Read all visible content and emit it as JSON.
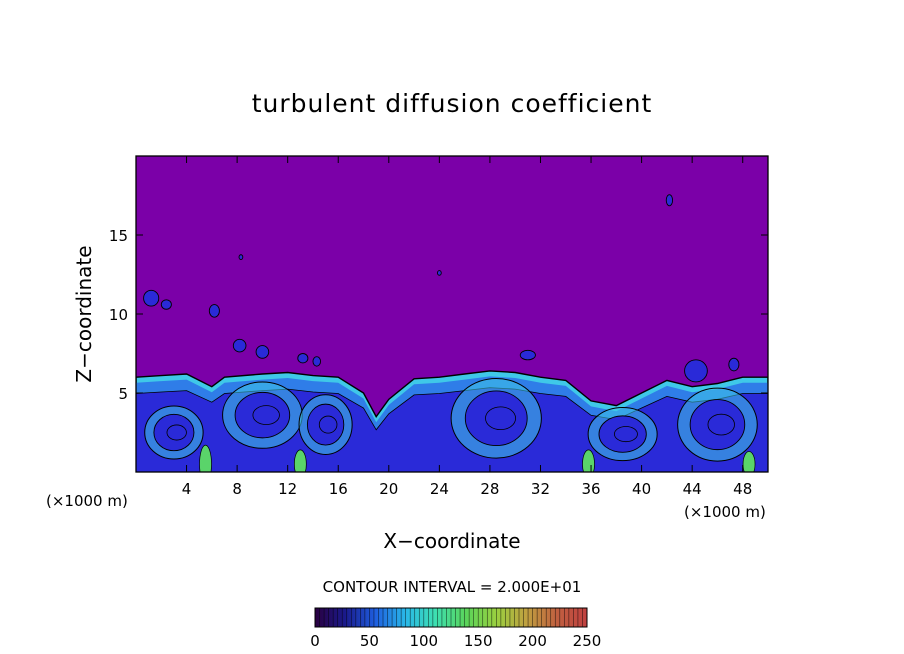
{
  "chart_data": {
    "type": "heatmap",
    "title": "turbulent diffusion coefficient",
    "xlabel": "X−coordinate",
    "ylabel": "Z−coordinate",
    "x_unit_left": "(×1000 m)",
    "x_unit_right": "(×1000 m)",
    "xlim": [
      0,
      50
    ],
    "ylim": [
      0,
      20
    ],
    "x_ticks": [
      4,
      8,
      12,
      16,
      20,
      24,
      28,
      32,
      36,
      40,
      44,
      48
    ],
    "y_ticks": [
      5,
      10,
      15
    ],
    "contour_interval_text": "CONTOUR INTERVAL = 2.000E+01",
    "colorbar": {
      "min": 0,
      "max": 250,
      "ticks": [
        0,
        50,
        100,
        150,
        200,
        250
      ],
      "colors": [
        "#2a0040",
        "#1a1a8c",
        "#1f5fe0",
        "#29b8e8",
        "#3ee0b0",
        "#5ad45a",
        "#9ad040",
        "#c0a040",
        "#c06040",
        "#c04040"
      ]
    },
    "field_colors": {
      "background": "#7b00a8",
      "layer_deep": "#2a2ad8",
      "layer_mid": "#2f7de8",
      "layer_cyan": "#3fc8e8",
      "layer_green": "#5ad46a",
      "contour": "#000000"
    },
    "boundary_layer_top": [
      [
        0,
        6.0
      ],
      [
        2,
        6.1
      ],
      [
        4,
        6.2
      ],
      [
        6,
        5.4
      ],
      [
        7,
        6.0
      ],
      [
        10,
        6.2
      ],
      [
        12,
        6.3
      ],
      [
        14,
        6.1
      ],
      [
        16,
        6.0
      ],
      [
        18,
        5.0
      ],
      [
        19,
        3.5
      ],
      [
        20,
        4.6
      ],
      [
        22,
        5.9
      ],
      [
        24,
        6.0
      ],
      [
        26,
        6.2
      ],
      [
        28,
        6.4
      ],
      [
        30,
        6.3
      ],
      [
        32,
        6.0
      ],
      [
        34,
        5.8
      ],
      [
        36,
        4.5
      ],
      [
        38,
        4.2
      ],
      [
        40,
        5.0
      ],
      [
        42,
        5.8
      ],
      [
        44,
        5.4
      ],
      [
        46,
        5.6
      ],
      [
        48,
        6.0
      ],
      [
        50,
        6.0
      ]
    ],
    "eddies": [
      {
        "x": 3,
        "z": 2.5,
        "rx": 2.2,
        "rz": 1.6
      },
      {
        "x": 10,
        "z": 3.6,
        "rx": 3.0,
        "rz": 2.0
      },
      {
        "x": 15,
        "z": 3.0,
        "rx": 2.0,
        "rz": 1.8
      },
      {
        "x": 28.5,
        "z": 3.4,
        "rx": 3.4,
        "rz": 2.4
      },
      {
        "x": 38.5,
        "z": 2.4,
        "rx": 2.6,
        "rz": 1.6
      },
      {
        "x": 46,
        "z": 3.0,
        "rx": 3.0,
        "rz": 2.2
      }
    ],
    "patches": [
      {
        "x": 1.2,
        "z": 11.0,
        "rx": 0.6,
        "rz": 0.5
      },
      {
        "x": 2.4,
        "z": 10.6,
        "rx": 0.4,
        "rz": 0.3
      },
      {
        "x": 6.2,
        "z": 10.2,
        "rx": 0.4,
        "rz": 0.4
      },
      {
        "x": 8.2,
        "z": 8.0,
        "rx": 0.5,
        "rz": 0.4
      },
      {
        "x": 10.0,
        "z": 7.6,
        "rx": 0.5,
        "rz": 0.4
      },
      {
        "x": 13.2,
        "z": 7.2,
        "rx": 0.4,
        "rz": 0.3
      },
      {
        "x": 14.3,
        "z": 7.0,
        "rx": 0.3,
        "rz": 0.3
      },
      {
        "x": 31.0,
        "z": 7.4,
        "rx": 0.6,
        "rz": 0.3
      },
      {
        "x": 44.3,
        "z": 6.4,
        "rx": 0.9,
        "rz": 0.7
      },
      {
        "x": 47.3,
        "z": 6.8,
        "rx": 0.4,
        "rz": 0.4
      },
      {
        "x": 42.2,
        "z": 17.2,
        "rx": 0.25,
        "rz": 0.35
      },
      {
        "x": 8.3,
        "z": 13.6,
        "rx": 0.15,
        "rz": 0.15
      },
      {
        "x": 24.0,
        "z": 12.6,
        "rx": 0.15,
        "rz": 0.15
      }
    ]
  }
}
